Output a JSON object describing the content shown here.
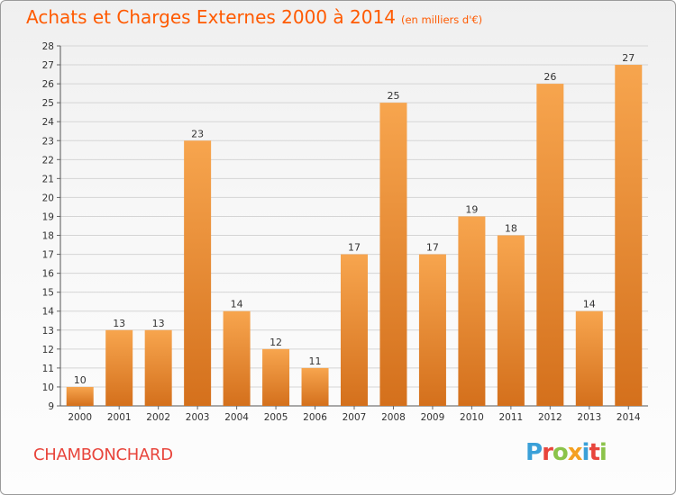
{
  "header": {
    "title": "Achats et Charges Externes 2000 à 2014",
    "subtitle": "(en milliers d'€)"
  },
  "footer": {
    "place": "CHAMBONCHARD",
    "logo_letters": [
      {
        "ch": "P",
        "color": "#3aa0d8"
      },
      {
        "ch": "r",
        "color": "#e8453c"
      },
      {
        "ch": "o",
        "color": "#8bc34a"
      },
      {
        "ch": "x",
        "color": "#f4a020"
      },
      {
        "ch": "i",
        "color": "#3aa0d8"
      },
      {
        "ch": "t",
        "color": "#e8453c"
      },
      {
        "ch": "i",
        "color": "#8bc34a"
      }
    ]
  },
  "colors": {
    "title": "#ff5a00",
    "bar_top": "#f7a54e",
    "bar_bottom": "#d4701c",
    "grid": "#d5d5d5"
  },
  "chart_data": {
    "type": "bar",
    "title": "Achats et Charges Externes 2000 à 2014",
    "subtitle": "(en milliers d'€)",
    "categories": [
      "2000",
      "2001",
      "2002",
      "2003",
      "2004",
      "2005",
      "2006",
      "2007",
      "2008",
      "2009",
      "2010",
      "2011",
      "2012",
      "2013",
      "2014"
    ],
    "values": [
      10,
      13,
      13,
      23,
      14,
      12,
      11,
      17,
      25,
      17,
      19,
      18,
      26,
      14,
      27
    ],
    "ylim": [
      9,
      28
    ],
    "yticks": [
      9,
      10,
      11,
      12,
      13,
      14,
      15,
      16,
      17,
      18,
      19,
      20,
      21,
      22,
      23,
      24,
      25,
      26,
      27,
      28
    ],
    "grid": true,
    "xlabel": "",
    "ylabel": ""
  }
}
